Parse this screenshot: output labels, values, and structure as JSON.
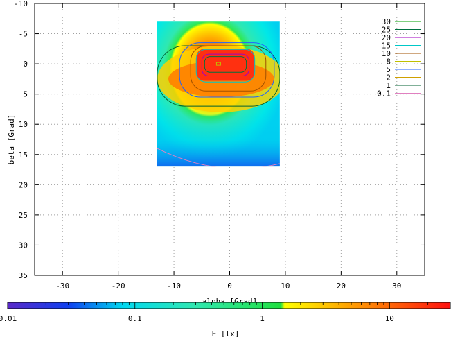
{
  "chart_data": [
    {
      "type": "heatmap",
      "xlabel": "alpha [Grad]",
      "ylabel": "beta [Grad]",
      "xlim": [
        -35,
        35
      ],
      "ylim": [
        -10,
        35
      ],
      "y_axis_inverted": true,
      "x_ticks": [
        "-30",
        "-20",
        "-10",
        "0",
        "10",
        "20",
        "30"
      ],
      "y_ticks": [
        "-10",
        "-5",
        "0",
        "5",
        "10",
        "15",
        "20",
        "25",
        "30",
        "35"
      ],
      "grid": true,
      "data_extent": {
        "alpha": [
          -13,
          9
        ],
        "beta": [
          -7,
          17
        ]
      },
      "peak": {
        "alpha": -2,
        "beta": 0,
        "value": 30
      },
      "legend_position": "top-right",
      "contours": [
        {
          "label": "30",
          "color": "#00a000"
        },
        {
          "label": "25",
          "color": "#007040"
        },
        {
          "label": "20",
          "color": "#a000c0"
        },
        {
          "label": "15",
          "color": "#00c8c8"
        },
        {
          "label": "10",
          "color": "#a05000"
        },
        {
          "label": "8",
          "color": "#c0c000"
        },
        {
          "label": "5",
          "color": "#2060ff"
        },
        {
          "label": "2",
          "color": "#d0a000"
        },
        {
          "label": "1",
          "color": "#006030"
        },
        {
          "label": "0.1",
          "color": "#e080c0"
        }
      ]
    },
    {
      "type": "colorbar",
      "label": "E [lx]",
      "scale": "log",
      "range": [
        0.01,
        30
      ],
      "ticks": [
        "0.01",
        "0.1",
        "1",
        "10"
      ],
      "stops": [
        {
          "value": 0.01,
          "color": "#5a2ac8"
        },
        {
          "value": 0.03,
          "color": "#1040f0"
        },
        {
          "value": 0.08,
          "color": "#00d8f0"
        },
        {
          "value": 0.3,
          "color": "#30e8b0"
        },
        {
          "value": 1.4,
          "color": "#20e040"
        },
        {
          "value": 1.5,
          "color": "#ffff00"
        },
        {
          "value": 4,
          "color": "#ffb000"
        },
        {
          "value": 30,
          "color": "#ff1010"
        }
      ]
    }
  ]
}
